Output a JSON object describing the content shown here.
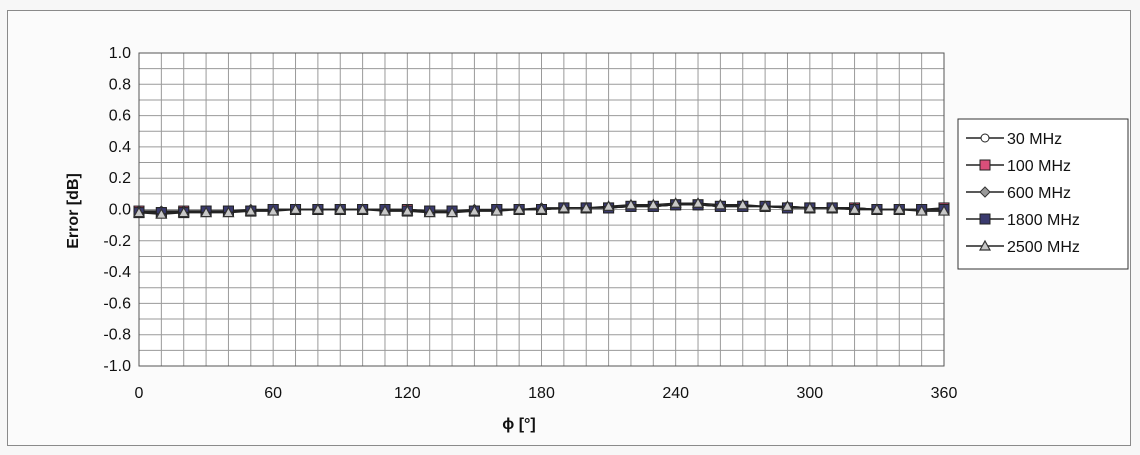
{
  "chart_data": {
    "type": "line",
    "title": "",
    "xlabel": "ϕ [°]",
    "ylabel": "Error [dB]",
    "xlim": [
      0,
      360
    ],
    "ylim": [
      -1.0,
      1.0
    ],
    "x_ticks": [
      0,
      60,
      120,
      180,
      240,
      300,
      360
    ],
    "y_ticks": [
      "1.0",
      "0.8",
      "0.6",
      "0.4",
      "0.2",
      "0.0",
      "-0.2",
      "-0.4",
      "-0.6",
      "-0.8",
      "-1.0"
    ],
    "grid": true,
    "legend_position": "right",
    "x": [
      0,
      10,
      20,
      30,
      40,
      50,
      60,
      70,
      80,
      90,
      100,
      110,
      120,
      130,
      140,
      150,
      160,
      170,
      180,
      190,
      200,
      210,
      220,
      230,
      240,
      250,
      260,
      270,
      280,
      290,
      300,
      310,
      320,
      330,
      340,
      350,
      360
    ],
    "series": [
      {
        "name": "30 MHz",
        "marker": "circle-open",
        "color": "#111111",
        "values": [
          -0.01,
          -0.01,
          -0.01,
          -0.01,
          -0.01,
          -0.01,
          0.0,
          0.0,
          0.0,
          0.0,
          0.0,
          0.0,
          0.0,
          -0.01,
          -0.01,
          -0.01,
          0.0,
          0.0,
          0.0,
          0.01,
          0.01,
          0.01,
          0.02,
          0.02,
          0.03,
          0.03,
          0.02,
          0.02,
          0.02,
          0.02,
          0.01,
          0.01,
          0.01,
          0.0,
          0.0,
          0.0,
          0.0
        ]
      },
      {
        "name": "100 MHz",
        "marker": "square",
        "color": "#d94f7a",
        "values": [
          -0.01,
          -0.02,
          -0.01,
          -0.01,
          -0.01,
          -0.01,
          0.0,
          0.0,
          0.0,
          0.0,
          0.0,
          0.0,
          0.0,
          -0.01,
          -0.01,
          -0.01,
          0.0,
          0.0,
          0.0,
          0.01,
          0.01,
          0.01,
          0.02,
          0.02,
          0.03,
          0.03,
          0.02,
          0.02,
          0.02,
          0.01,
          0.01,
          0.01,
          0.01,
          0.0,
          0.0,
          0.0,
          0.01
        ]
      },
      {
        "name": "600 MHz",
        "marker": "diamond",
        "color": "#9a9a9a",
        "values": [
          -0.01,
          -0.01,
          -0.01,
          -0.01,
          -0.01,
          0.0,
          0.0,
          0.0,
          0.0,
          0.0,
          0.0,
          0.0,
          0.0,
          -0.01,
          -0.01,
          0.0,
          0.0,
          0.0,
          0.01,
          0.01,
          0.01,
          0.01,
          0.02,
          0.02,
          0.03,
          0.03,
          0.02,
          0.02,
          0.02,
          0.01,
          0.01,
          0.01,
          0.01,
          0.0,
          0.0,
          0.0,
          0.0
        ]
      },
      {
        "name": "1800 MHz",
        "marker": "square",
        "color": "#3a3a6e",
        "values": [
          -0.02,
          -0.02,
          -0.02,
          -0.01,
          -0.01,
          -0.01,
          0.0,
          0.0,
          0.0,
          0.0,
          0.0,
          0.0,
          -0.01,
          -0.01,
          -0.01,
          -0.01,
          0.0,
          0.0,
          0.0,
          0.01,
          0.01,
          0.01,
          0.02,
          0.02,
          0.03,
          0.03,
          0.02,
          0.02,
          0.02,
          0.01,
          0.01,
          0.01,
          0.0,
          0.0,
          0.0,
          0.0,
          0.0
        ]
      },
      {
        "name": "2500 MHz",
        "marker": "triangle",
        "color": "#555555",
        "values": [
          -0.02,
          -0.03,
          -0.02,
          -0.02,
          -0.02,
          -0.01,
          -0.01,
          0.0,
          0.0,
          0.0,
          0.0,
          -0.01,
          -0.01,
          -0.02,
          -0.02,
          -0.01,
          -0.01,
          0.0,
          0.0,
          0.01,
          0.01,
          0.02,
          0.03,
          0.03,
          0.04,
          0.04,
          0.03,
          0.03,
          0.02,
          0.02,
          0.01,
          0.01,
          0.0,
          0.0,
          0.0,
          -0.01,
          -0.01
        ]
      }
    ]
  }
}
